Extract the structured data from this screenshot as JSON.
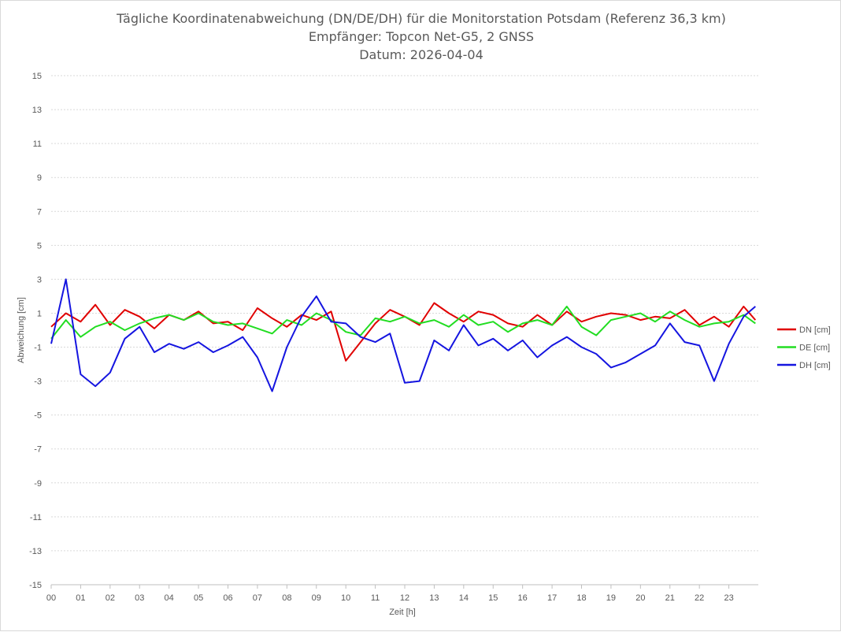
{
  "chart_data": {
    "type": "line",
    "title_lines": [
      "Tägliche Koordinatenabweichung (DN/DE/DH) für die Monitorstation Potsdam (Referenz 36,3 km)",
      "Empfänger: Topcon Net-G5, 2 GNSS",
      "Datum: 2026-04-04"
    ],
    "xlabel": "Zeit [h]",
    "ylabel": "Abweichung [cm]",
    "xlim": [
      0,
      24
    ],
    "ylim": [
      -15,
      15
    ],
    "x_tick_labels": [
      "00",
      "01",
      "02",
      "03",
      "04",
      "05",
      "06",
      "07",
      "08",
      "09",
      "10",
      "11",
      "12",
      "13",
      "14",
      "15",
      "16",
      "17",
      "18",
      "19",
      "20",
      "21",
      "22",
      "23"
    ],
    "y_tick_labels": [
      "15",
      "13",
      "11",
      "9",
      "7",
      "5",
      "3",
      "1",
      "-1",
      "-3",
      "-5",
      "-7",
      "-9",
      "-11",
      "-13",
      "-15"
    ],
    "grid": true,
    "legend_position": "right",
    "x": [
      0.0,
      0.5,
      1.0,
      1.5,
      2.0,
      2.5,
      3.0,
      3.5,
      4.0,
      4.5,
      5.0,
      5.5,
      6.0,
      6.5,
      7.0,
      7.5,
      8.0,
      8.5,
      9.0,
      9.5,
      10.0,
      10.5,
      11.0,
      11.5,
      12.0,
      12.5,
      13.0,
      13.5,
      14.0,
      14.5,
      15.0,
      15.5,
      16.0,
      16.5,
      17.0,
      17.5,
      18.0,
      18.5,
      19.0,
      19.5,
      20.0,
      20.5,
      21.0,
      21.5,
      22.0,
      22.5,
      23.0,
      23.5,
      23.9
    ],
    "series": [
      {
        "name": "DN [cm]",
        "color": "#e00000",
        "values": [
          0.2,
          1.0,
          0.5,
          1.5,
          0.3,
          1.2,
          0.8,
          0.1,
          0.9,
          0.6,
          1.1,
          0.4,
          0.5,
          0.0,
          1.3,
          0.7,
          0.2,
          0.9,
          0.6,
          1.1,
          -1.8,
          -0.7,
          0.4,
          1.2,
          0.8,
          0.3,
          1.6,
          1.0,
          0.5,
          1.1,
          0.9,
          0.4,
          0.2,
          0.9,
          0.3,
          1.1,
          0.5,
          0.8,
          1.0,
          0.9,
          0.6,
          0.8,
          0.7,
          1.2,
          0.3,
          0.8,
          0.2,
          1.4,
          0.6
        ]
      },
      {
        "name": "DE [cm]",
        "color": "#22dd22",
        "values": [
          -0.5,
          0.6,
          -0.4,
          0.2,
          0.5,
          0.0,
          0.4,
          0.7,
          0.9,
          0.6,
          1.0,
          0.5,
          0.3,
          0.4,
          0.1,
          -0.2,
          0.6,
          0.3,
          1.0,
          0.6,
          -0.1,
          -0.3,
          0.7,
          0.5,
          0.8,
          0.4,
          0.6,
          0.2,
          0.9,
          0.3,
          0.5,
          -0.1,
          0.4,
          0.6,
          0.3,
          1.4,
          0.2,
          -0.3,
          0.6,
          0.8,
          1.0,
          0.5,
          1.1,
          0.6,
          0.2,
          0.4,
          0.5,
          0.9,
          0.4
        ]
      },
      {
        "name": "DH [cm]",
        "color": "#1515e0",
        "values": [
          -0.8,
          3.0,
          -2.6,
          -3.3,
          -2.5,
          -0.5,
          0.2,
          -1.3,
          -0.8,
          -1.1,
          -0.7,
          -1.3,
          -0.9,
          -0.4,
          -1.6,
          -3.6,
          -1.0,
          0.8,
          2.0,
          0.5,
          0.4,
          -0.4,
          -0.7,
          -0.2,
          -3.1,
          -3.0,
          -0.6,
          -1.2,
          0.3,
          -0.9,
          -0.5,
          -1.2,
          -0.6,
          -1.6,
          -0.9,
          -0.4,
          -1.0,
          -1.4,
          -2.2,
          -1.9,
          -1.4,
          -0.9,
          0.4,
          -0.7,
          -0.9,
          -3.0,
          -0.8,
          0.8,
          1.4
        ]
      }
    ]
  }
}
